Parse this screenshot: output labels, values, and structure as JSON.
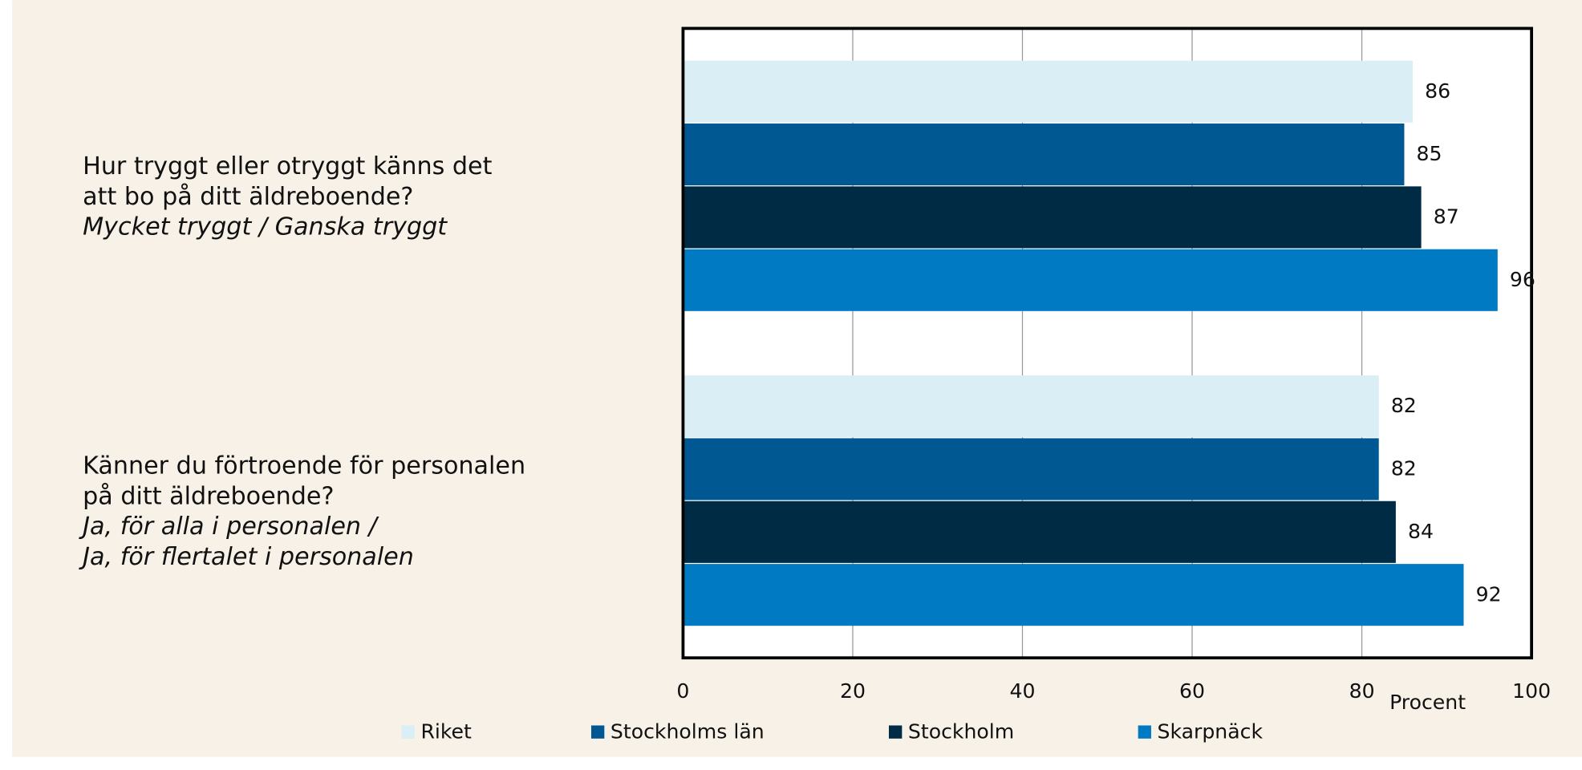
{
  "chart_data": {
    "type": "hbar",
    "categories": [
      [
        "Hur tryggt eller otryggt känns det",
        "att bo på ditt äldreboende?"
      ],
      [
        "Känner du förtroende för personalen",
        "på ditt äldreboende?"
      ]
    ],
    "category_notes": [
      [
        "Mycket tryggt / Ganska tryggt"
      ],
      [
        "Ja, för alla i personalen /",
        "Ja, för flertalet i personalen"
      ]
    ],
    "series": [
      {
        "name": "Riket",
        "color": "#daeef6",
        "values": [
          86,
          82
        ]
      },
      {
        "name": "Stockholms län",
        "color": "#005893",
        "values": [
          85,
          82
        ]
      },
      {
        "name": "Stockholm",
        "color": "#002b45",
        "values": [
          87,
          84
        ]
      },
      {
        "name": "Skarpnäck",
        "color": "#007ac2",
        "values": [
          96,
          92
        ]
      }
    ],
    "xlabel": "Procent",
    "xlim": [
      0,
      100
    ],
    "xticks": [
      0,
      20,
      40,
      60,
      80,
      100
    ],
    "grid": true
  }
}
